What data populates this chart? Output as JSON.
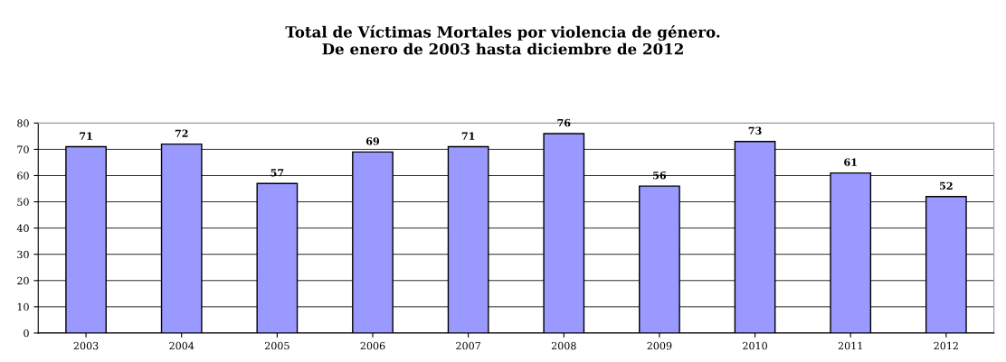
{
  "chart_data": {
    "type": "bar",
    "title": "Total de Víctimas Mortales por violencia de género.\nDe enero de 2003 hasta diciembre de 2012",
    "categories": [
      "2003",
      "2004",
      "2005",
      "2006",
      "2007",
      "2008",
      "2009",
      "2010",
      "2011",
      "2012"
    ],
    "values": [
      71,
      72,
      57,
      69,
      71,
      76,
      56,
      73,
      61,
      52
    ],
    "color": "#9999ff",
    "ylim": [
      0,
      80
    ],
    "yticks": [
      0,
      10,
      20,
      30,
      40,
      50,
      60,
      70,
      80
    ],
    "grid": "y",
    "data_labels": true
  }
}
